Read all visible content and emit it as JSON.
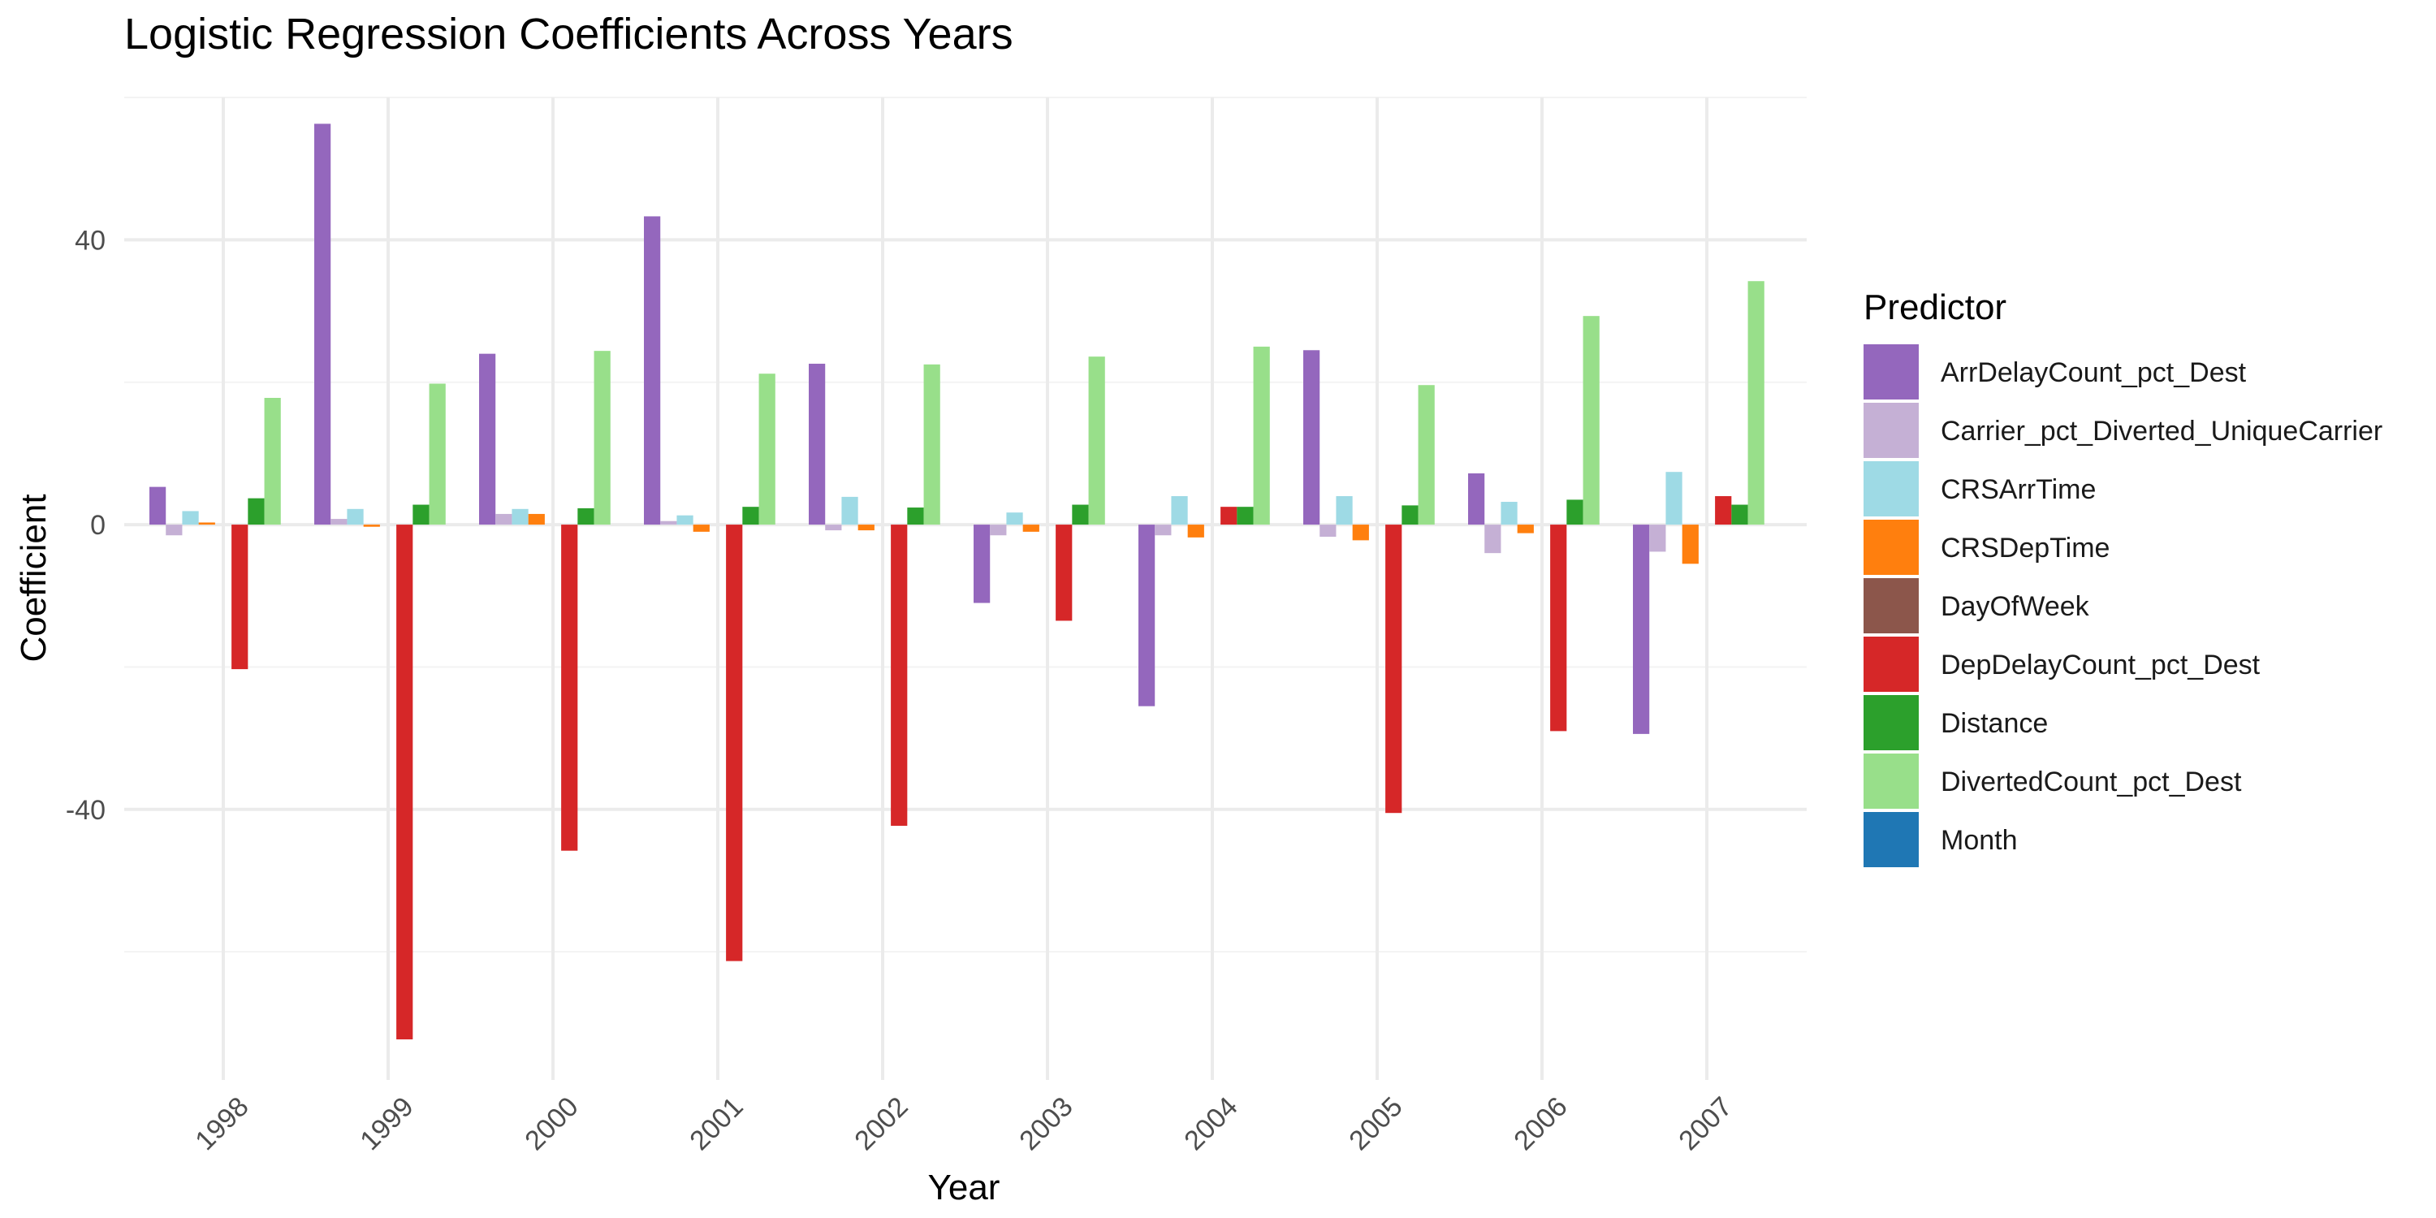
{
  "chart_data": {
    "type": "bar",
    "title": "Logistic Regression Coefficients Across Years",
    "xlabel": "Year",
    "ylabel": "Coefficient",
    "categories": [
      "1998",
      "1999",
      "2000",
      "2001",
      "2002",
      "2003",
      "2004",
      "2005",
      "2006",
      "2007"
    ],
    "ylim": [
      -78,
      60
    ],
    "yticks": [
      40,
      0,
      -40
    ],
    "ytick_labels": [
      "40",
      "0",
      "-40"
    ],
    "grid": true,
    "legend": {
      "title": "Predictor",
      "position": "right"
    },
    "series": [
      {
        "name": "ArrDelayCount_pct_Dest",
        "color": "#9467bd",
        "values": [
          5.3,
          56.3,
          24.0,
          43.3,
          22.6,
          -11.0,
          -25.5,
          24.5,
          7.2,
          -29.4
        ]
      },
      {
        "name": "Carrier_pct_Diverted_UniqueCarrier",
        "color": "#c5b0d5",
        "values": [
          -1.5,
          0.8,
          1.5,
          0.5,
          -0.8,
          -1.5,
          -1.5,
          -1.7,
          -4.0,
          -3.8
        ]
      },
      {
        "name": "CRSArrTime",
        "color": "#9edae5",
        "values": [
          1.9,
          2.2,
          2.2,
          1.3,
          3.9,
          1.7,
          4.0,
          4.0,
          3.2,
          7.4
        ]
      },
      {
        "name": "CRSDepTime",
        "color": "#ff7f0e",
        "values": [
          0.3,
          -0.3,
          1.5,
          -1.0,
          -0.8,
          -1.0,
          -1.8,
          -2.2,
          -1.2,
          -5.5
        ]
      },
      {
        "name": "DayOfWeek",
        "color": "#8c564b",
        "values": [
          0,
          0,
          0,
          0,
          0,
          0,
          0,
          0,
          0,
          0
        ]
      },
      {
        "name": "DepDelayCount_pct_Dest",
        "color": "#d62728",
        "values": [
          -20.3,
          -72.3,
          -45.8,
          -61.3,
          -42.3,
          -13.5,
          2.5,
          -40.5,
          -29.0,
          4.0
        ]
      },
      {
        "name": "Distance",
        "color": "#2ca02c",
        "values": [
          3.7,
          2.8,
          2.3,
          2.5,
          2.4,
          2.8,
          2.5,
          2.7,
          3.5,
          2.8
        ]
      },
      {
        "name": "DivertedCount_pct_Dest",
        "color": "#98df8a",
        "values": [
          17.8,
          19.8,
          24.4,
          21.2,
          22.5,
          23.6,
          25.0,
          19.6,
          29.3,
          34.2
        ]
      },
      {
        "name": "Month",
        "color": "#1f77b4",
        "values": [
          0,
          0,
          0,
          0,
          0,
          0,
          0,
          0,
          0,
          0
        ]
      }
    ]
  }
}
